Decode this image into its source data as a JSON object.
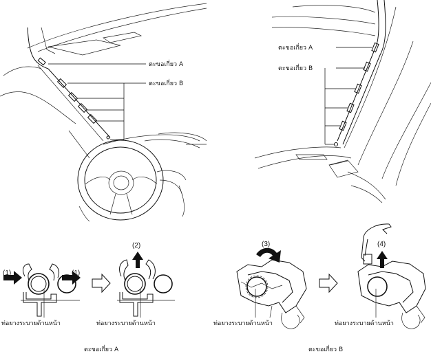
{
  "callouts": {
    "hook_a": "ตะขอเกี่ยว A",
    "hook_b": "ตะขอเกี่ยว B"
  },
  "parts": {
    "front_drain_hose": "ท่อยางระบายด้านหน้า"
  },
  "steps": {
    "s1": "(1)",
    "s2": "(2)",
    "s3": "(3)",
    "s4": "(4)"
  },
  "captions": {
    "hook_a": "ตะขอเกี่ยว A",
    "hook_b": "ตะขอเกี่ยว B"
  }
}
